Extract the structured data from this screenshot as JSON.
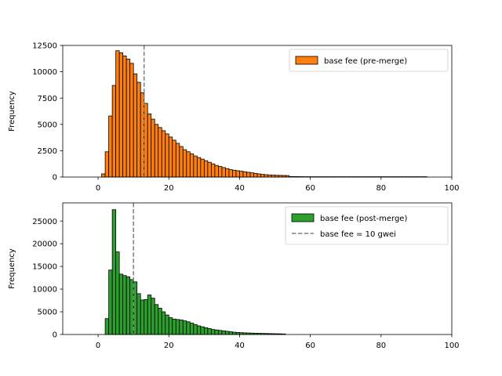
{
  "chart_data": [
    {
      "type": "bar",
      "subtype": "histogram",
      "xlim": [
        -10,
        100
      ],
      "ylim": [
        0,
        12500
      ],
      "xticks": [
        0,
        20,
        40,
        60,
        80,
        100
      ],
      "yticks": [
        0,
        2500,
        5000,
        7500,
        10000,
        12500
      ],
      "ylabel": "Frequency",
      "xlabel": "",
      "bin_start": 0,
      "bin_width": 1,
      "bar_color": "#ff7f0e",
      "edge_color": "#000000",
      "values": [
        0,
        300,
        2400,
        5800,
        8700,
        12000,
        11800,
        11500,
        11200,
        10800,
        9800,
        9000,
        8000,
        7000,
        6000,
        5500,
        5000,
        4700,
        4400,
        4100,
        3800,
        3500,
        3200,
        2900,
        2600,
        2400,
        2200,
        2000,
        1850,
        1700,
        1550,
        1400,
        1250,
        1100,
        1000,
        900,
        800,
        700,
        650,
        600,
        550,
        500,
        450,
        400,
        350,
        300,
        250,
        220,
        200,
        180,
        170,
        160,
        150,
        140,
        50,
        45,
        40,
        35,
        30,
        30,
        30,
        30,
        30,
        30,
        30,
        30,
        30,
        30,
        30,
        30,
        30,
        30,
        30,
        30,
        30,
        30,
        30,
        30,
        30,
        30,
        30,
        30,
        30,
        30,
        30,
        30,
        30,
        30,
        30,
        30,
        30,
        30,
        30
      ],
      "reference_line": {
        "x": 13,
        "color": "#808080",
        "style": "dashed"
      },
      "legend": {
        "location": "top-right",
        "entries": [
          {
            "label": "base fee (pre-merge)",
            "kind": "patch",
            "color": "#ff7f0e"
          }
        ]
      }
    },
    {
      "type": "bar",
      "subtype": "histogram",
      "xlim": [
        -10,
        100
      ],
      "ylim": [
        0,
        29000
      ],
      "xticks": [
        0,
        20,
        40,
        60,
        80,
        100
      ],
      "yticks": [
        0,
        5000,
        10000,
        15000,
        20000,
        25000
      ],
      "ylabel": "Frequency",
      "xlabel": "",
      "bin_start": 0,
      "bin_width": 1,
      "bar_color": "#2ca02c",
      "edge_color": "#000000",
      "values": [
        0,
        0,
        3500,
        14200,
        27500,
        18200,
        13300,
        13000,
        12700,
        12100,
        11600,
        9000,
        7600,
        7700,
        8700,
        8000,
        6600,
        5800,
        5000,
        4300,
        3700,
        3400,
        3300,
        3200,
        3000,
        2800,
        2500,
        2200,
        1900,
        1700,
        1500,
        1300,
        1100,
        1000,
        900,
        800,
        700,
        600,
        500,
        450,
        400,
        360,
        330,
        300,
        280,
        260,
        240,
        220,
        200,
        180,
        160,
        140,
        120,
        0,
        0,
        0,
        0,
        0,
        0,
        0,
        0,
        0,
        0,
        0,
        0,
        0,
        0,
        0,
        0,
        0,
        0,
        0,
        0,
        0,
        0,
        0,
        0,
        0,
        0,
        0,
        0,
        0,
        0,
        0,
        0,
        0,
        0,
        0,
        0,
        0,
        0,
        0,
        0
      ],
      "reference_line": {
        "x": 10,
        "color": "#808080",
        "style": "dashed"
      },
      "legend": {
        "location": "top-right",
        "entries": [
          {
            "label": "base fee (post-merge)",
            "kind": "patch",
            "color": "#2ca02c"
          },
          {
            "label": "base fee = 10 gwei",
            "kind": "dashed-line",
            "color": "#808080"
          }
        ]
      }
    }
  ]
}
